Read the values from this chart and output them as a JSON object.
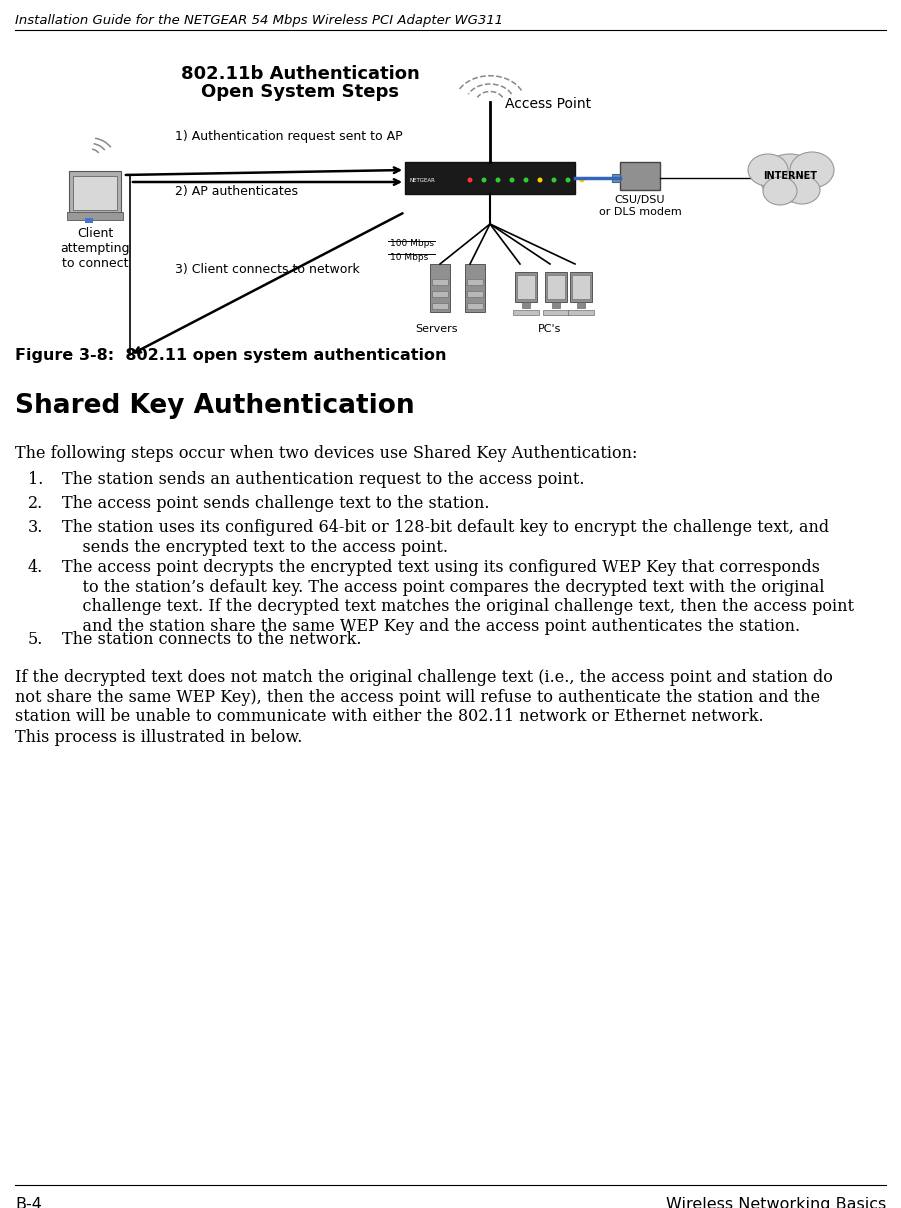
{
  "header_text": "Installation Guide for the NETGEAR 54 Mbps Wireless PCI Adapter WG311",
  "footer_left": "B-4",
  "footer_right": "Wireless Networking Basics",
  "figure_caption": "Figure 3-8:  802.11 open system authentication",
  "section_title": "Shared Key Authentication",
  "body_para0": "The following steps occur when two devices use Shared Key Authentication:",
  "numbered_items": [
    "The station sends an authentication request to the access point.",
    "The access point sends challenge text to the station.",
    "The station uses its configured 64-bit or 128-bit default key to encrypt the challenge text, and\n    sends the encrypted text to the access point.",
    "The access point decrypts the encrypted text using its configured WEP Key that corresponds\n    to the station’s default key. The access point compares the decrypted text with the original\n    challenge text. If the decrypted text matches the original challenge text, then the access point\n    and the station share the same WEP Key and the access point authenticates the station.",
    "The station connects to the network."
  ],
  "body_para2": "If the decrypted text does not match the original challenge text (i.e., the access point and station do\nnot share the same WEP Key), then the access point will refuse to authenticate the station and the\nstation will be unable to communicate with either the 802.11 network or Ethernet network.",
  "body_para3": "This process is illustrated in below.",
  "diagram_title_line1": "802.11b Authentication",
  "diagram_title_line2": "Open System Steps",
  "diagram_labels": {
    "access_point": "Access Point",
    "client_label": "Client\nattempting\nto connect",
    "step1": "1) Authentication request sent to AP",
    "step2": "2) AP authenticates",
    "step3": "3) Client connects to network",
    "csu_dsu": "CSU/DSU\nor DLS modem",
    "servers": "Servers",
    "pcs": "PC's",
    "mbps100": "100 Mbps",
    "mbps10": "10 Mbps",
    "internet": "INTERNET"
  },
  "bg_color": "#ffffff",
  "text_color": "#000000",
  "header_font_size": 9.5,
  "body_font_size": 11.5,
  "section_font_size": 19,
  "figure_caption_font_size": 11.5,
  "diagram_title_fontsize": 13
}
